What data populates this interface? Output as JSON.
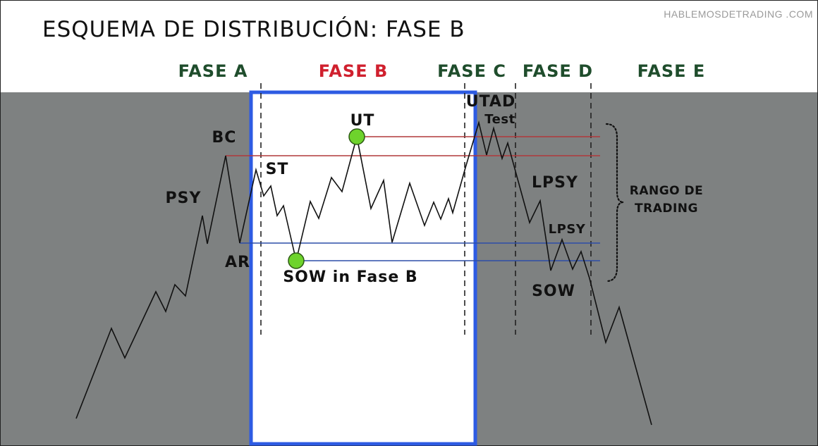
{
  "title": "ESQUEMA DE DISTRIBUCIÓN: FASE B",
  "watermark": "HABLEMOSDETRADING .COM",
  "phases": [
    {
      "key": "a",
      "label": "FASE A",
      "color": "#1f4d2c"
    },
    {
      "key": "b",
      "label": "FASE B",
      "color": "#d0202e",
      "highlighted": true
    },
    {
      "key": "c",
      "label": "FASE C",
      "color": "#1f4d2c"
    },
    {
      "key": "d",
      "label": "FASE D",
      "color": "#1f4d2c"
    },
    {
      "key": "e",
      "label": "FASE E",
      "color": "#1f4d2c"
    }
  ],
  "events": {
    "bc": "BC",
    "psy": "PSY",
    "st": "ST",
    "ar": "AR",
    "ut": "UT",
    "sow_fase_b": "SOW in Fase B",
    "utad": "UTAD",
    "test": "Test",
    "lpsy_1": "LPSY",
    "lpsy_2": "LPSY",
    "sow": "SOW"
  },
  "range_label": {
    "line1": "RANGO DE",
    "line2": "TRADING"
  },
  "colors": {
    "background_gray": "#7e8181",
    "header_white": "#ffffff",
    "highlight_box_fill": "#ffffff",
    "highlight_box_border": "#2d5be3",
    "resistance_lines": "#b0383a",
    "support_lines": "#2d4ea8",
    "price_line": "#111111",
    "marker_green": "#6ed32c",
    "text_dark": "#111111",
    "watermark": "#9a9a9a"
  },
  "markers": [
    {
      "name": "ut-marker",
      "event": "UT"
    },
    {
      "name": "sow-marker",
      "event": "SOW in Fase B"
    }
  ]
}
